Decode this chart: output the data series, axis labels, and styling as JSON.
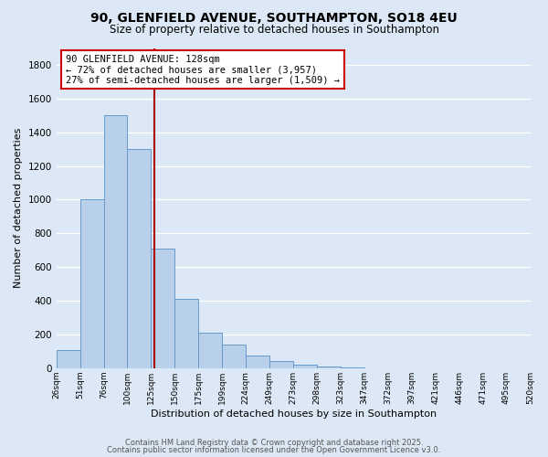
{
  "title": "90, GLENFIELD AVENUE, SOUTHAMPTON, SO18 4EU",
  "subtitle": "Size of property relative to detached houses in Southampton",
  "xlabel": "Distribution of detached houses by size in Southampton",
  "ylabel": "Number of detached properties",
  "bar_heights": [
    110,
    1000,
    1500,
    1300,
    710,
    410,
    210,
    140,
    75,
    40,
    20,
    10,
    5,
    0,
    0,
    0,
    0,
    0,
    0,
    0
  ],
  "bin_labels": [
    "26sqm",
    "51sqm",
    "76sqm",
    "100sqm",
    "125sqm",
    "150sqm",
    "175sqm",
    "199sqm",
    "224sqm",
    "249sqm",
    "273sqm",
    "298sqm",
    "323sqm",
    "347sqm",
    "372sqm",
    "397sqm",
    "421sqm",
    "446sqm",
    "471sqm",
    "495sqm",
    "520sqm"
  ],
  "bar_color": "#b8d0ea",
  "bar_edge_color": "#6699cc",
  "vline_color": "#aa0000",
  "annotation_box_text": "90 GLENFIELD AVENUE: 128sqm\n← 72% of detached houses are smaller (3,957)\n27% of semi-detached houses are larger (1,509) →",
  "annotation_box_color": "#cc0000",
  "bg_color": "#dce8f5",
  "plot_bg_color": "#dce8f5",
  "grid_color": "#ffffff",
  "ylim": [
    0,
    1900
  ],
  "yticks": [
    0,
    200,
    400,
    600,
    800,
    1000,
    1200,
    1400,
    1600,
    1800
  ],
  "footer1": "Contains HM Land Registry data © Crown copyright and database right 2025.",
  "footer2": "Contains public sector information licensed under the Open Government Licence v3.0."
}
